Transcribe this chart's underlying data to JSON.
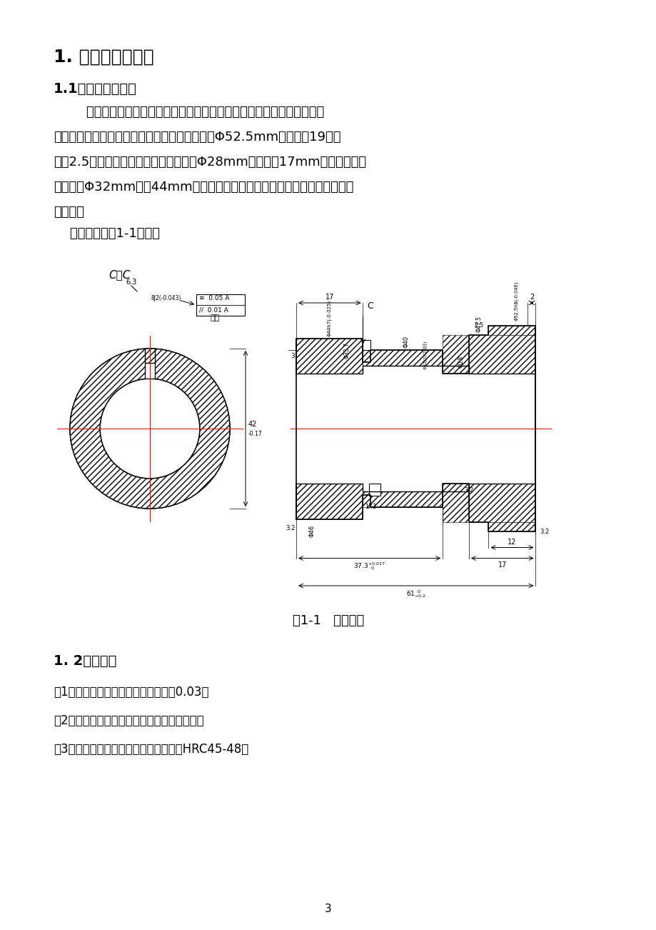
{
  "bg_color": "#ffffff",
  "title1": "1. 零件的工艺分析",
  "title2": "1.1零件的结构特点",
  "para1": "        如题目要求，所加工的零件为一个轴齿轮。其一端为一个连续的短轴径",
  "para2": "有一个键槽和另外一个零件进行配合。另一端为Φ52.5mm、齿数为19、模",
  "para3": "数是2.5的齿轮。在齿轮的一端加工一个Φ28mm，长度为17mm的孔，另一端",
  "para4": "也要加工Φ32mm长为44mm，精度要求比较高的孔，在孔的一侧还要加工一",
  "para5": "个油槽。",
  "para6": "    具体形状如图1-1所示。",
  "fig_caption": "图1-1   加工零件",
  "title3": "1. 2技术要求",
  "req1": "（1）轴的内圆与外圆的圆跳度不大于0.03；",
  "req2": "（2）毛坯要经过调至热处理，提高力学性能；",
  "req3": "（3）齿部表面要进行淬火处理，硬度为HRC45-48。",
  "page_num": "3"
}
